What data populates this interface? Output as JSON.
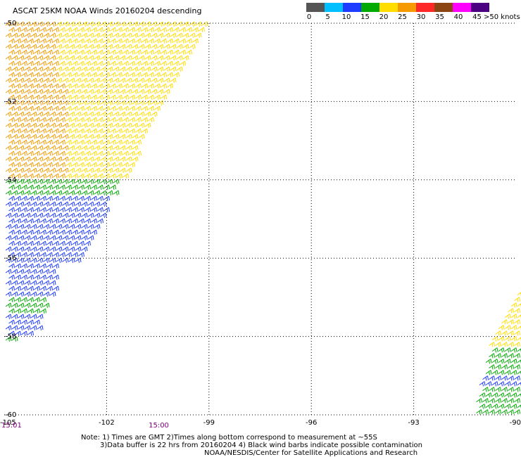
{
  "title": "ASCAT 25KM NOAA Winds 20160204 descending",
  "legend": {
    "colors": [
      "#555555",
      "#00bfff",
      "#1e3cff",
      "#00aa00",
      "#ffdd00",
      "#f59a00",
      "#ff2828",
      "#8b4513",
      "#ff00ff",
      "#4b0082"
    ],
    "labels": [
      "0",
      "5",
      "10",
      "15",
      "20",
      "25",
      "30",
      "35",
      "40",
      "45",
      ">50 knots"
    ],
    "ranges": [
      [
        0,
        5
      ],
      [
        5,
        10
      ],
      [
        10,
        15
      ],
      [
        15,
        20
      ],
      [
        20,
        25
      ],
      [
        25,
        30
      ],
      [
        30,
        35
      ],
      [
        35,
        40
      ],
      [
        40,
        45
      ],
      [
        45,
        50
      ]
    ]
  },
  "notes": {
    "line1": "Note: 1) Times are GMT 2)Times along bottom correspond to measurement at ~55S",
    "line2": "3)Data buffer is 22 hrs from 20160204 4) Black wind barbs indicate possible contamination",
    "line3": "NOAA/NESDIS/Center for Satellite Applications and Research"
  },
  "time_labels": [
    {
      "text": "15:01",
      "lon": -105
    },
    {
      "text": "15:00",
      "lon": -100.5
    }
  ],
  "chart_data": {
    "type": "map",
    "xlabel": "",
    "ylabel": "",
    "xlim": [
      -105,
      -90
    ],
    "ylim": [
      -60,
      -50
    ],
    "x_ticks": [
      -105,
      -102,
      -99,
      -96,
      -93,
      -90
    ],
    "x_tick_labels": [
      "-105",
      "-102",
      "-99",
      "-96",
      "-93",
      "-90"
    ],
    "y_ticks": [
      -50,
      -52,
      -54,
      -56,
      -58,
      -60
    ],
    "y_tick_labels": [
      "-50",
      "-52",
      "-54",
      "-56",
      "-58",
      "-60"
    ],
    "grid": true,
    "units": "knots",
    "swaths": [
      {
        "name": "west swath",
        "boundary": [
          [
            -105,
            -50
          ],
          [
            -99.1,
            -50
          ],
          [
            -103.8,
            -57.7
          ],
          [
            -105,
            -58.3
          ]
        ],
        "wind_bands": [
          {
            "lat_range": [
              -50,
              -51.6
            ],
            "lon_range": [
              -105,
              -103.5
            ],
            "speed_kt": 27
          },
          {
            "lat_range": [
              -51.6,
              -54
            ],
            "lon_range": [
              -105,
              -103.2
            ],
            "speed_kt": 26
          },
          {
            "lat_range": [
              -50,
              -54
            ],
            "lon_range": [
              -103.5,
              -99.1
            ],
            "speed_kt": 22
          },
          {
            "lat_range": [
              -54,
              -54.5
            ],
            "lon_range": [
              -105,
              -101.8
            ],
            "speed_kt": 17
          },
          {
            "lat_range": [
              -54.5,
              -56.2
            ],
            "lon_range": [
              -105,
              -102
            ],
            "speed_kt": 12
          },
          {
            "lat_range": [
              -56.2,
              -57
            ],
            "lon_range": [
              -105,
              -103.5
            ],
            "speed_kt": 10
          },
          {
            "lat_range": [
              -57,
              -57.5
            ],
            "lon_range": [
              -105,
              -103.8
            ],
            "speed_kt": 17
          },
          {
            "lat_range": [
              -57.5,
              -58
            ],
            "lon_range": [
              -105,
              -104
            ],
            "speed_kt": 12
          },
          {
            "lat_range": [
              -58,
              -58.3
            ],
            "lon_range": [
              -105,
              -104.5
            ],
            "speed_kt": 17
          }
        ]
      },
      {
        "name": "east swath",
        "boundary": [
          [
            -89.9,
            -56.6
          ],
          [
            -89.9,
            -60
          ],
          [
            -91.3,
            -60
          ],
          [
            -90.8,
            -58.2
          ]
        ],
        "wind_bands": [
          {
            "lat_range": [
              -56.6,
              -58.3
            ],
            "lon_range": [
              -90.9,
              -89.9
            ],
            "speed_kt": 23
          },
          {
            "lat_range": [
              -58.3,
              -59
            ],
            "lon_range": [
              -91.1,
              -89.9
            ],
            "speed_kt": 17
          },
          {
            "lat_range": [
              -59,
              -59.3
            ],
            "lon_range": [
              -91.1,
              -89.9
            ],
            "speed_kt": 12
          },
          {
            "lat_range": [
              -59.3,
              -60
            ],
            "lon_range": [
              -91.3,
              -89.9
            ],
            "speed_kt": 17
          }
        ]
      }
    ]
  }
}
